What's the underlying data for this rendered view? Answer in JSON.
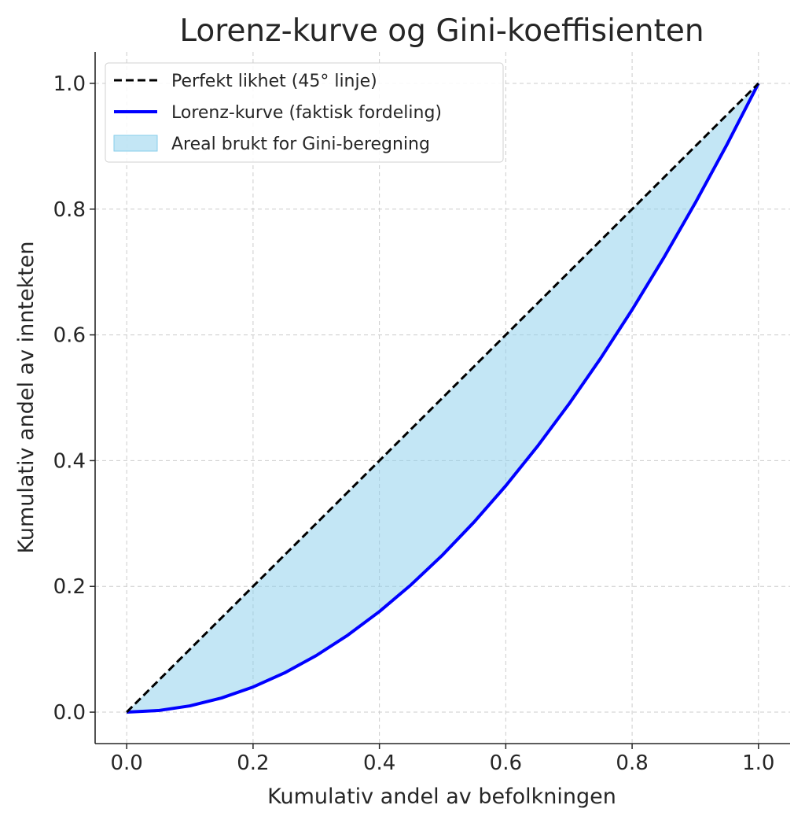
{
  "chart_data": {
    "type": "line",
    "title": "Lorenz-kurve og Gini-koeffisienten",
    "xlabel": "Kumulativ andel av befolkningen",
    "ylabel": "Kumulativ andel av inntekten",
    "xlim": [
      -0.05,
      1.05
    ],
    "ylim": [
      -0.05,
      1.05
    ],
    "xticks": [
      "0.0",
      "0.2",
      "0.4",
      "0.6",
      "0.8",
      "1.0"
    ],
    "yticks": [
      "0.0",
      "0.2",
      "0.4",
      "0.6",
      "0.8",
      "1.0"
    ],
    "grid": true,
    "legend_position": "top-left",
    "x": [
      0,
      0.05,
      0.1,
      0.15,
      0.2,
      0.25,
      0.3,
      0.35,
      0.4,
      0.45,
      0.5,
      0.55,
      0.6,
      0.65,
      0.7,
      0.75,
      0.8,
      0.85,
      0.9,
      0.95,
      1.0
    ],
    "series": [
      {
        "name": "Perfekt likhet (45° linje)",
        "style": "dashed",
        "color": "#000000",
        "values": [
          0,
          0.05,
          0.1,
          0.15,
          0.2,
          0.25,
          0.3,
          0.35,
          0.4,
          0.45,
          0.5,
          0.55,
          0.6,
          0.65,
          0.7,
          0.75,
          0.8,
          0.85,
          0.9,
          0.95,
          1.0
        ]
      },
      {
        "name": "Lorenz-kurve (faktisk fordeling)",
        "style": "solid",
        "color": "#0000ff",
        "values": [
          0,
          0.0025,
          0.01,
          0.0225,
          0.04,
          0.0625,
          0.09,
          0.1225,
          0.16,
          0.2025,
          0.25,
          0.3025,
          0.36,
          0.4225,
          0.49,
          0.5625,
          0.64,
          0.7225,
          0.81,
          0.9025,
          1.0
        ]
      }
    ],
    "fill": {
      "name": "Areal brukt for Gini-beregning",
      "color": "#87ceeb",
      "opacity": 0.5
    }
  }
}
